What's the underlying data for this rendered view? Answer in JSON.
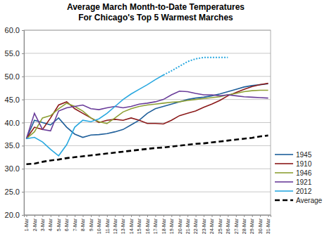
{
  "chart_data": {
    "type": "line",
    "title": "Average March Month-to-Date Temperatures",
    "subtitle": "For Chicago's Top 5 Warmest Marches",
    "categories": [
      "1-Mar",
      "2-Mar",
      "3-Mar",
      "4-Mar",
      "5-Mar",
      "6-Mar",
      "7-Mar",
      "8-Mar",
      "9-Mar",
      "10-Mar",
      "11-Mar",
      "12-Mar",
      "13-Mar",
      "14-Mar",
      "15-Mar",
      "16-Mar",
      "17-Mar",
      "18-Mar",
      "19-Mar",
      "20-Mar",
      "21-Mar",
      "22-Mar",
      "23-Mar",
      "24-Mar",
      "25-Mar",
      "26-Mar",
      "27-Mar",
      "28-Mar",
      "29-Mar",
      "30-Mar",
      "31-Mar"
    ],
    "series": [
      {
        "name": "1945",
        "color": "#1f5f9a",
        "line_style": "solid",
        "values": [
          36.5,
          40.5,
          40.0,
          39.5,
          41.0,
          39.0,
          37.5,
          36.8,
          37.3,
          37.4,
          37.6,
          38.0,
          38.5,
          39.5,
          40.5,
          42.0,
          43.0,
          43.5,
          44.0,
          44.5,
          45.0,
          45.3,
          45.5,
          45.8,
          46.2,
          46.7,
          47.2,
          47.7,
          48.0,
          48.2,
          48.4
        ]
      },
      {
        "name": "1910",
        "color": "#8b1a1a",
        "line_style": "solid",
        "values": [
          36.5,
          39.0,
          38.5,
          41.0,
          43.8,
          44.5,
          43.0,
          42.0,
          41.0,
          40.0,
          40.5,
          40.7,
          40.5,
          41.0,
          40.5,
          39.8,
          39.8,
          39.7,
          40.5,
          41.5,
          42.0,
          42.5,
          43.3,
          44.0,
          44.8,
          45.8,
          46.5,
          47.2,
          47.8,
          48.2,
          48.5
        ]
      },
      {
        "name": "1946",
        "color": "#8ea035",
        "line_style": "solid",
        "values": [
          36.5,
          38.0,
          41.0,
          41.5,
          43.0,
          44.2,
          43.5,
          42.5,
          41.0,
          40.2,
          39.8,
          41.0,
          42.3,
          43.0,
          43.5,
          43.8,
          44.0,
          44.2,
          44.4,
          44.5,
          44.8,
          45.0,
          45.2,
          45.4,
          45.6,
          46.0,
          46.3,
          46.7,
          46.9,
          47.0,
          47.0
        ]
      },
      {
        "name": "1921",
        "color": "#6a3d9a",
        "line_style": "solid",
        "values": [
          36.5,
          42.0,
          38.5,
          38.2,
          42.5,
          43.2,
          43.5,
          43.8,
          43.0,
          42.8,
          43.2,
          43.5,
          43.2,
          43.5,
          44.0,
          44.2,
          44.5,
          45.0,
          46.0,
          46.8,
          46.7,
          46.3,
          46.0,
          46.0,
          45.8,
          46.0,
          45.8,
          45.6,
          45.5,
          45.4,
          45.3
        ]
      },
      {
        "name": "2012",
        "color": "#29a8e0",
        "line_style": "solid",
        "values": [
          36.5,
          36.8,
          35.8,
          34.2,
          32.8,
          35.2,
          39.0,
          40.5,
          40.2,
          40.8,
          42.0,
          43.5,
          45.0,
          46.2,
          47.2,
          48.2,
          49.3,
          50.3,
          null,
          null,
          null,
          null,
          null,
          null,
          null,
          null,
          null,
          null,
          null,
          null,
          null
        ]
      },
      {
        "color": "#29a8e0",
        "line_style": "dotted",
        "values": [
          null,
          null,
          null,
          null,
          null,
          null,
          null,
          null,
          null,
          null,
          null,
          null,
          null,
          null,
          null,
          null,
          null,
          50.3,
          51.2,
          52.2,
          53.2,
          53.8,
          54.1,
          54.1,
          54.1,
          54.1,
          null,
          null,
          null,
          null,
          null
        ]
      },
      {
        "name": "Average",
        "color": "#000000",
        "line_style": "dashed",
        "values": [
          31.0,
          31.1,
          31.5,
          31.8,
          32.0,
          32.3,
          32.5,
          32.7,
          32.9,
          33.1,
          33.3,
          33.5,
          33.7,
          33.9,
          34.1,
          34.3,
          34.5,
          34.6,
          34.8,
          35.0,
          35.2,
          35.4,
          35.5,
          35.7,
          35.9,
          36.1,
          36.3,
          36.5,
          36.7,
          37.0,
          37.2
        ]
      }
    ],
    "ylim": [
      20,
      60
    ],
    "yticks": [
      {
        "value": 20,
        "label": "20.0"
      },
      {
        "value": 25,
        "label": "25.0"
      },
      {
        "value": 30,
        "label": "30.0"
      },
      {
        "value": 35,
        "label": "35.0"
      },
      {
        "value": 40,
        "label": "40.0"
      },
      {
        "value": 45,
        "label": "45.0"
      },
      {
        "value": 50,
        "label": "50.0"
      },
      {
        "value": 55,
        "label": "55.0"
      },
      {
        "value": 60,
        "label": "60.0"
      }
    ],
    "grid": true,
    "legend": "right"
  }
}
